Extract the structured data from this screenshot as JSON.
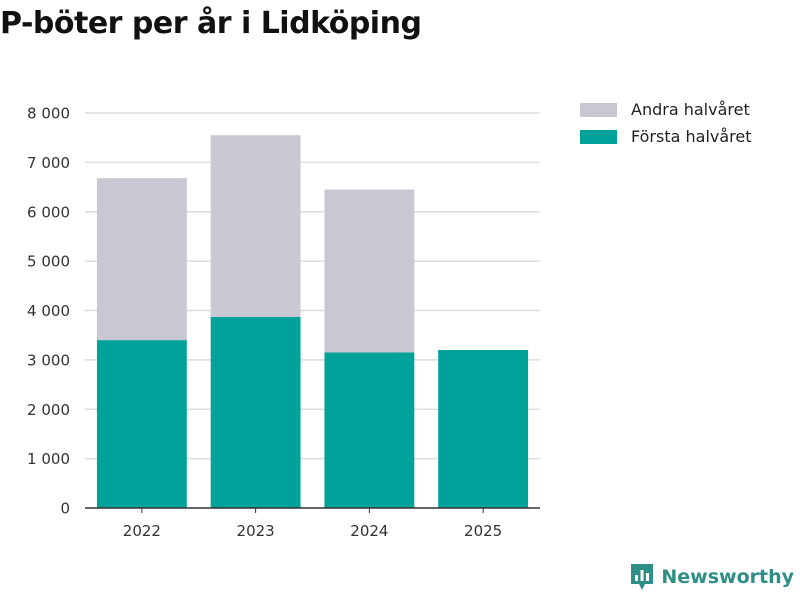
{
  "title": "P-böter per år i Lidköping",
  "brand": {
    "name": "Newsworthy",
    "icon": "newsworthy-logo-icon",
    "color": "#2e8f86"
  },
  "chart_data": {
    "type": "bar",
    "stacked": true,
    "title": "P-böter per år i Lidköping",
    "xlabel": "",
    "ylabel": "",
    "categories": [
      "2022",
      "2023",
      "2024",
      "2025"
    ],
    "series": [
      {
        "name": "Första halvåret",
        "color": "#00a29a",
        "values": [
          3400,
          3870,
          3150,
          3200
        ]
      },
      {
        "name": "Andra halvåret",
        "color": "#c8c7d2",
        "values": [
          3280,
          3680,
          3300,
          0
        ]
      }
    ],
    "ylim": [
      0,
      8000
    ],
    "yticks": [
      0,
      1000,
      2000,
      3000,
      4000,
      5000,
      6000,
      7000,
      8000
    ],
    "ytick_labels": [
      "0",
      "1 000",
      "2 000",
      "3 000",
      "4 000",
      "5 000",
      "6 000",
      "7 000",
      "8 000"
    ],
    "grid": true,
    "legend": {
      "placement": "top-right",
      "entries": [
        "Andra halvåret",
        "Första halvåret"
      ]
    }
  }
}
